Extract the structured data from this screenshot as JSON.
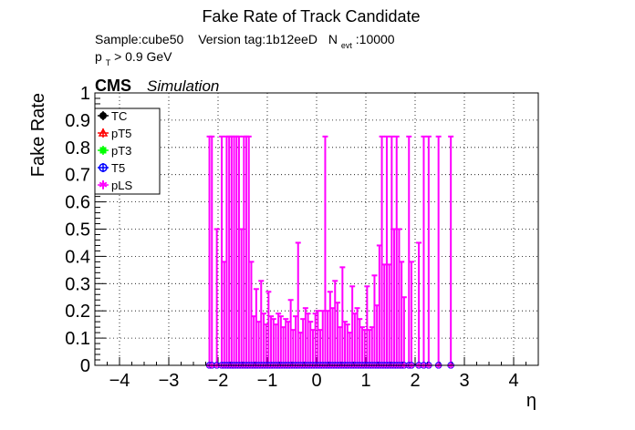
{
  "chart_data": {
    "type": "scatter",
    "title": "Fake Rate of Track Candidate",
    "subtitle_line1": {
      "sample": "Sample:cube50",
      "version": "Version tag:1b12eeD",
      "nevt_label": "N",
      "nevt_sub": "evt",
      "nevt_value": ":10000"
    },
    "subtitle_line2": {
      "pt_p": "p",
      "pt_sub": "T",
      "pt_rest": " > 0.9 GeV"
    },
    "cms_label": "CMS",
    "cms_sub": "Simulation",
    "xlabel": "η",
    "ylabel": "Fake Rate",
    "xlim": [
      -4.5,
      4.5
    ],
    "ylim": [
      0,
      1
    ],
    "xticks": [
      "−4",
      "−3",
      "−2",
      "−1",
      "0",
      "1",
      "2",
      "3",
      "4"
    ],
    "yticks": [
      "0",
      "0.1",
      "0.2",
      "0.3",
      "0.4",
      "0.5",
      "0.6",
      "0.7",
      "0.8",
      "0.9",
      "1"
    ],
    "grid": true,
    "legend_position": "top-left",
    "series": [
      {
        "name": "pLS",
        "color": "#ff00ff",
        "marker": "star",
        "points": [
          {
            "x": -2.175,
            "y": 0.0,
            "err": 0.84
          },
          {
            "x": -2.125,
            "y": 0.0,
            "err": 0.84
          },
          {
            "x": -2.025,
            "y": 0.0,
            "err": 0.5
          },
          {
            "x": -1.925,
            "y": 0.0,
            "err": 0.84
          },
          {
            "x": -1.875,
            "y": 0.0,
            "err": 0.38
          },
          {
            "x": -1.825,
            "y": 0.0,
            "err": 0.84
          },
          {
            "x": -1.775,
            "y": 0.0,
            "err": 0.84
          },
          {
            "x": -1.725,
            "y": 0.0,
            "err": 0.84
          },
          {
            "x": -1.675,
            "y": 0.0,
            "err": 0.84
          },
          {
            "x": -1.625,
            "y": 0.0,
            "err": 0.84
          },
          {
            "x": -1.575,
            "y": 0.0,
            "err": 0.84
          },
          {
            "x": -1.525,
            "y": 0.0,
            "err": 0.5
          },
          {
            "x": -1.475,
            "y": 0.0,
            "err": 0.84
          },
          {
            "x": -1.425,
            "y": 0.0,
            "err": 0.84
          },
          {
            "x": -1.375,
            "y": 0.0,
            "err": 0.84
          },
          {
            "x": -1.325,
            "y": 0.0,
            "err": 0.38
          },
          {
            "x": -1.275,
            "y": 0.0,
            "err": 0.18
          },
          {
            "x": -1.225,
            "y": 0.0,
            "err": 0.28
          },
          {
            "x": -1.175,
            "y": 0.0,
            "err": 0.16
          },
          {
            "x": -1.125,
            "y": 0.0,
            "err": 0.31
          },
          {
            "x": -1.075,
            "y": 0.0,
            "err": 0.19
          },
          {
            "x": -1.025,
            "y": 0.0,
            "err": 0.15
          },
          {
            "x": -0.975,
            "y": 0.0,
            "err": 0.27
          },
          {
            "x": -0.925,
            "y": 0.0,
            "err": 0.18
          },
          {
            "x": -0.875,
            "y": 0.0,
            "err": 0.17
          },
          {
            "x": -0.825,
            "y": 0.0,
            "err": 0.15
          },
          {
            "x": -0.775,
            "y": 0.0,
            "err": 0.19
          },
          {
            "x": -0.725,
            "y": 0.0,
            "err": 0.18
          },
          {
            "x": -0.675,
            "y": 0.0,
            "err": 0.14
          },
          {
            "x": -0.625,
            "y": 0.0,
            "err": 0.17
          },
          {
            "x": -0.575,
            "y": 0.0,
            "err": 0.16
          },
          {
            "x": -0.525,
            "y": 0.0,
            "err": 0.24
          },
          {
            "x": -0.475,
            "y": 0.0,
            "err": 0.13
          },
          {
            "x": -0.425,
            "y": 0.0,
            "err": 0.18
          },
          {
            "x": -0.375,
            "y": 0.0,
            "err": 0.45
          },
          {
            "x": -0.325,
            "y": 0.0,
            "err": 0.12
          },
          {
            "x": -0.275,
            "y": 0.0,
            "err": 0.17
          },
          {
            "x": -0.225,
            "y": 0.0,
            "err": 0.21
          },
          {
            "x": -0.175,
            "y": 0.0,
            "err": 0.19
          },
          {
            "x": -0.125,
            "y": 0.0,
            "err": 0.16
          },
          {
            "x": -0.075,
            "y": 0.0,
            "err": 0.13
          },
          {
            "x": -0.025,
            "y": 0.0,
            "err": 0.19
          },
          {
            "x": 0.025,
            "y": 0.0,
            "err": 0.2
          },
          {
            "x": 0.075,
            "y": 0.0,
            "err": 0.13
          },
          {
            "x": 0.125,
            "y": 0.0,
            "err": 0.2
          },
          {
            "x": 0.175,
            "y": 0.0,
            "err": 0.84
          },
          {
            "x": 0.225,
            "y": 0.0,
            "err": 0.2
          },
          {
            "x": 0.275,
            "y": 0.0,
            "err": 0.27
          },
          {
            "x": 0.325,
            "y": 0.0,
            "err": 0.21
          },
          {
            "x": 0.375,
            "y": 0.0,
            "err": 0.31
          },
          {
            "x": 0.425,
            "y": 0.0,
            "err": 0.23
          },
          {
            "x": 0.475,
            "y": 0.0,
            "err": 0.14
          },
          {
            "x": 0.525,
            "y": 0.0,
            "err": 0.36
          },
          {
            "x": 0.575,
            "y": 0.0,
            "err": 0.16
          },
          {
            "x": 0.625,
            "y": 0.0,
            "err": 0.15
          },
          {
            "x": 0.675,
            "y": 0.0,
            "err": 0.12
          },
          {
            "x": 0.725,
            "y": 0.0,
            "err": 0.29
          },
          {
            "x": 0.775,
            "y": 0.0,
            "err": 0.19
          },
          {
            "x": 0.825,
            "y": 0.0,
            "err": 0.21
          },
          {
            "x": 0.875,
            "y": 0.0,
            "err": 0.17
          },
          {
            "x": 0.925,
            "y": 0.0,
            "err": 0.14
          },
          {
            "x": 0.975,
            "y": 0.0,
            "err": 0.13
          },
          {
            "x": 1.025,
            "y": 0.0,
            "err": 0.29
          },
          {
            "x": 1.075,
            "y": 0.0,
            "err": 0.13
          },
          {
            "x": 1.125,
            "y": 0.0,
            "err": 0.14
          },
          {
            "x": 1.175,
            "y": 0.0,
            "err": 0.33
          },
          {
            "x": 1.225,
            "y": 0.0,
            "err": 0.22
          },
          {
            "x": 1.275,
            "y": 0.0,
            "err": 0.44
          },
          {
            "x": 1.325,
            "y": 0.0,
            "err": 0.84
          },
          {
            "x": 1.375,
            "y": 0.0,
            "err": 0.37
          },
          {
            "x": 1.425,
            "y": 0.0,
            "err": 0.84
          },
          {
            "x": 1.475,
            "y": 0.0,
            "err": 0.37
          },
          {
            "x": 1.525,
            "y": 0.0,
            "err": 0.84
          },
          {
            "x": 1.575,
            "y": 0.0,
            "err": 0.5
          },
          {
            "x": 1.625,
            "y": 0.0,
            "err": 0.84
          },
          {
            "x": 1.675,
            "y": 0.0,
            "err": 0.5
          },
          {
            "x": 1.725,
            "y": 0.0,
            "err": 0.38
          },
          {
            "x": 1.775,
            "y": 0.0,
            "err": 0.25
          },
          {
            "x": 1.875,
            "y": 0.0,
            "err": 0.84
          },
          {
            "x": 1.925,
            "y": 0.0,
            "err": 0.38
          },
          {
            "x": 2.075,
            "y": 0.0,
            "err": 0.45
          },
          {
            "x": 2.175,
            "y": 0.0,
            "err": 0.84
          },
          {
            "x": 2.275,
            "y": 0.0,
            "err": 0.84
          },
          {
            "x": 2.475,
            "y": 0.0,
            "err": 0.84
          },
          {
            "x": 2.725,
            "y": 0.0,
            "err": 0.84
          }
        ]
      }
    ],
    "legend": [
      {
        "name": "TC",
        "color": "#000000",
        "marker": "circle-filled"
      },
      {
        "name": "pT5",
        "color": "#ff0000",
        "marker": "triangle"
      },
      {
        "name": "pT3",
        "color": "#00ff00",
        "marker": "cross"
      },
      {
        "name": "T5",
        "color": "#0000ff",
        "marker": "circle-open"
      },
      {
        "name": "pLS",
        "color": "#ff00ff",
        "marker": "star"
      }
    ]
  }
}
